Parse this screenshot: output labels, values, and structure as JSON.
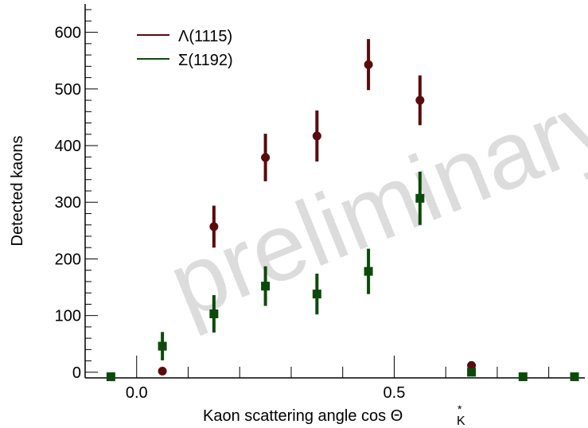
{
  "chart_data": {
    "type": "scatter",
    "title": "",
    "xlabel_main": "Kaon scattering angle cos Θ",
    "xlabel_sup": "*",
    "xlabel_sub": "K",
    "ylabel": "Detected kaons",
    "xlim": [
      -0.1,
      0.87
    ],
    "ylim": [
      -10,
      650
    ],
    "x_major_ticks": [
      0.0,
      0.5
    ],
    "x_tick_labels": [
      "0.0",
      "0.5"
    ],
    "y_major_ticks": [
      0,
      100,
      200,
      300,
      400,
      500,
      600
    ],
    "y_tick_labels": [
      "0",
      "100",
      "200",
      "300",
      "400",
      "500",
      "600"
    ],
    "grid": false,
    "legend_position": "top-left",
    "watermark": "preliminary",
    "series": [
      {
        "name": "Λ(1115)",
        "color": "#5a0b0b",
        "marker": "circle",
        "points": [
          {
            "x": 0.05,
            "y": 2,
            "err": 0
          },
          {
            "x": 0.15,
            "y": 257,
            "err": 37
          },
          {
            "x": 0.25,
            "y": 379,
            "err": 42
          },
          {
            "x": 0.35,
            "y": 417,
            "err": 45
          },
          {
            "x": 0.45,
            "y": 543,
            "err": 45
          },
          {
            "x": 0.55,
            "y": 480,
            "err": 44
          },
          {
            "x": 0.65,
            "y": 12,
            "err": 7
          }
        ]
      },
      {
        "name": "Σ(1192)",
        "color": "#0c4a0c",
        "marker": "square",
        "points": [
          {
            "x": -0.05,
            "y": -8,
            "err": 0
          },
          {
            "x": 0.05,
            "y": 46,
            "err": 25
          },
          {
            "x": 0.15,
            "y": 103,
            "err": 33
          },
          {
            "x": 0.25,
            "y": 152,
            "err": 35
          },
          {
            "x": 0.35,
            "y": 138,
            "err": 36
          },
          {
            "x": 0.45,
            "y": 178,
            "err": 40
          },
          {
            "x": 0.55,
            "y": 307,
            "err": 47
          },
          {
            "x": 0.65,
            "y": 0,
            "err": 5
          },
          {
            "x": 0.75,
            "y": -8,
            "err": 0
          },
          {
            "x": 0.85,
            "y": -8,
            "err": 0
          }
        ]
      }
    ]
  }
}
